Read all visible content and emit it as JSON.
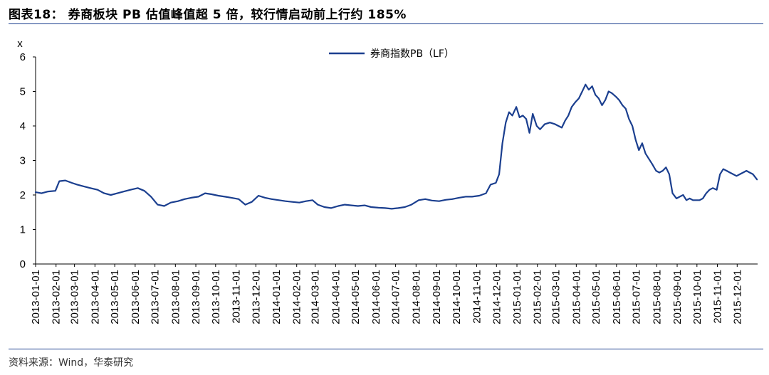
{
  "header": {
    "title": "图表18： 券商板块 PB 估值峰值超 5 倍，较行情启动前上行约 185%"
  },
  "footer": {
    "source": "资料来源：Wind，华泰研究"
  },
  "colors": {
    "series": "#1b3f8f",
    "rule": "#1b3f8f"
  },
  "chart_data": {
    "type": "line",
    "title": "",
    "ylabel": "x",
    "xlabel": "",
    "ylim": [
      0,
      6
    ],
    "yticks": [
      "0",
      "1",
      "2",
      "3",
      "4",
      "5",
      "6"
    ],
    "grid": false,
    "legend_position": "top-center",
    "xticks": [
      "2013-01-01",
      "2013-02-01",
      "2013-03-01",
      "2013-04-01",
      "2013-05-01",
      "2013-06-01",
      "2013-07-01",
      "2013-08-01",
      "2013-09-01",
      "2013-10-01",
      "2013-11-01",
      "2013-12-01",
      "2014-01-01",
      "2014-02-01",
      "2014-03-01",
      "2014-04-01",
      "2014-05-01",
      "2014-06-01",
      "2014-07-01",
      "2014-08-01",
      "2014-09-01",
      "2014-10-01",
      "2014-11-01",
      "2014-12-01",
      "2015-01-01",
      "2015-02-01",
      "2015-03-01",
      "2015-04-01",
      "2015-05-01",
      "2015-06-01",
      "2015-07-01",
      "2015-08-01",
      "2015-09-01",
      "2015-10-01",
      "2015-11-01",
      "2015-12-01"
    ],
    "series": [
      {
        "name": "券商指数PB（LF）",
        "points": [
          [
            "2013-01-01",
            2.08
          ],
          [
            "2013-01-10",
            2.05
          ],
          [
            "2013-01-20",
            2.1
          ],
          [
            "2013-01-31",
            2.12
          ],
          [
            "2013-02-06",
            2.4
          ],
          [
            "2013-02-15",
            2.42
          ],
          [
            "2013-02-25",
            2.35
          ],
          [
            "2013-03-05",
            2.3
          ],
          [
            "2013-03-15",
            2.25
          ],
          [
            "2013-03-25",
            2.2
          ],
          [
            "2013-04-05",
            2.15
          ],
          [
            "2013-04-15",
            2.05
          ],
          [
            "2013-04-25",
            2.0
          ],
          [
            "2013-05-05",
            2.05
          ],
          [
            "2013-05-15",
            2.1
          ],
          [
            "2013-05-25",
            2.15
          ],
          [
            "2013-06-05",
            2.2
          ],
          [
            "2013-06-15",
            2.12
          ],
          [
            "2013-06-25",
            1.95
          ],
          [
            "2013-07-05",
            1.72
          ],
          [
            "2013-07-15",
            1.68
          ],
          [
            "2013-07-25",
            1.78
          ],
          [
            "2013-08-05",
            1.82
          ],
          [
            "2013-08-15",
            1.88
          ],
          [
            "2013-08-25",
            1.92
          ],
          [
            "2013-09-05",
            1.95
          ],
          [
            "2013-09-15",
            2.05
          ],
          [
            "2013-09-25",
            2.02
          ],
          [
            "2013-10-05",
            1.98
          ],
          [
            "2013-10-15",
            1.95
          ],
          [
            "2013-10-25",
            1.92
          ],
          [
            "2013-11-05",
            1.88
          ],
          [
            "2013-11-15",
            1.72
          ],
          [
            "2013-11-25",
            1.8
          ],
          [
            "2013-12-05",
            1.98
          ],
          [
            "2013-12-15",
            1.92
          ],
          [
            "2013-12-25",
            1.88
          ],
          [
            "2014-01-05",
            1.85
          ],
          [
            "2014-01-15",
            1.82
          ],
          [
            "2014-01-25",
            1.8
          ],
          [
            "2014-02-05",
            1.78
          ],
          [
            "2014-02-15",
            1.82
          ],
          [
            "2014-02-25",
            1.85
          ],
          [
            "2014-03-05",
            1.72
          ],
          [
            "2014-03-15",
            1.65
          ],
          [
            "2014-03-25",
            1.62
          ],
          [
            "2014-04-05",
            1.68
          ],
          [
            "2014-04-15",
            1.72
          ],
          [
            "2014-04-25",
            1.7
          ],
          [
            "2014-05-05",
            1.68
          ],
          [
            "2014-05-15",
            1.7
          ],
          [
            "2014-05-25",
            1.65
          ],
          [
            "2014-06-05",
            1.63
          ],
          [
            "2014-06-15",
            1.62
          ],
          [
            "2014-06-25",
            1.6
          ],
          [
            "2014-07-05",
            1.62
          ],
          [
            "2014-07-15",
            1.65
          ],
          [
            "2014-07-25",
            1.72
          ],
          [
            "2014-08-05",
            1.85
          ],
          [
            "2014-08-15",
            1.88
          ],
          [
            "2014-08-25",
            1.84
          ],
          [
            "2014-09-05",
            1.82
          ],
          [
            "2014-09-15",
            1.86
          ],
          [
            "2014-09-25",
            1.88
          ],
          [
            "2014-10-05",
            1.92
          ],
          [
            "2014-10-15",
            1.95
          ],
          [
            "2014-10-25",
            1.95
          ],
          [
            "2014-11-05",
            1.98
          ],
          [
            "2014-11-15",
            2.05
          ],
          [
            "2014-11-22",
            2.3
          ],
          [
            "2014-11-30",
            2.35
          ],
          [
            "2014-12-05",
            2.6
          ],
          [
            "2014-12-10",
            3.5
          ],
          [
            "2014-12-15",
            4.1
          ],
          [
            "2014-12-20",
            4.4
          ],
          [
            "2014-12-25",
            4.3
          ],
          [
            "2014-12-31",
            4.55
          ],
          [
            "2015-01-05",
            4.25
          ],
          [
            "2015-01-10",
            4.3
          ],
          [
            "2015-01-15",
            4.2
          ],
          [
            "2015-01-20",
            3.8
          ],
          [
            "2015-01-25",
            4.35
          ],
          [
            "2015-01-31",
            4.0
          ],
          [
            "2015-02-05",
            3.9
          ],
          [
            "2015-02-12",
            4.05
          ],
          [
            "2015-02-20",
            4.1
          ],
          [
            "2015-02-28",
            4.05
          ],
          [
            "2015-03-05",
            4.0
          ],
          [
            "2015-03-10",
            3.95
          ],
          [
            "2015-03-15",
            4.15
          ],
          [
            "2015-03-20",
            4.3
          ],
          [
            "2015-03-25",
            4.55
          ],
          [
            "2015-03-31",
            4.7
          ],
          [
            "2015-04-05",
            4.8
          ],
          [
            "2015-04-10",
            5.0
          ],
          [
            "2015-04-15",
            5.2
          ],
          [
            "2015-04-20",
            5.05
          ],
          [
            "2015-04-25",
            5.15
          ],
          [
            "2015-04-30",
            4.9
          ],
          [
            "2015-05-05",
            4.8
          ],
          [
            "2015-05-10",
            4.6
          ],
          [
            "2015-05-15",
            4.75
          ],
          [
            "2015-05-20",
            5.0
          ],
          [
            "2015-05-25",
            4.95
          ],
          [
            "2015-05-31",
            4.85
          ],
          [
            "2015-06-05",
            4.75
          ],
          [
            "2015-06-10",
            4.6
          ],
          [
            "2015-06-15",
            4.5
          ],
          [
            "2015-06-20",
            4.2
          ],
          [
            "2015-06-25",
            4.0
          ],
          [
            "2015-06-30",
            3.6
          ],
          [
            "2015-07-05",
            3.3
          ],
          [
            "2015-07-10",
            3.5
          ],
          [
            "2015-07-15",
            3.2
          ],
          [
            "2015-07-20",
            3.05
          ],
          [
            "2015-07-25",
            2.9
          ],
          [
            "2015-07-31",
            2.7
          ],
          [
            "2015-08-05",
            2.65
          ],
          [
            "2015-08-10",
            2.7
          ],
          [
            "2015-08-15",
            2.8
          ],
          [
            "2015-08-20",
            2.6
          ],
          [
            "2015-08-25",
            2.05
          ],
          [
            "2015-08-31",
            1.9
          ],
          [
            "2015-09-05",
            1.95
          ],
          [
            "2015-09-10",
            2.0
          ],
          [
            "2015-09-15",
            1.85
          ],
          [
            "2015-09-20",
            1.9
          ],
          [
            "2015-09-25",
            1.85
          ],
          [
            "2015-10-05",
            1.85
          ],
          [
            "2015-10-10",
            1.9
          ],
          [
            "2015-10-15",
            2.05
          ],
          [
            "2015-10-20",
            2.15
          ],
          [
            "2015-10-25",
            2.2
          ],
          [
            "2015-10-31",
            2.15
          ],
          [
            "2015-11-05",
            2.6
          ],
          [
            "2015-11-10",
            2.75
          ],
          [
            "2015-11-15",
            2.7
          ],
          [
            "2015-11-20",
            2.65
          ],
          [
            "2015-11-25",
            2.6
          ],
          [
            "2015-11-30",
            2.55
          ],
          [
            "2015-12-05",
            2.6
          ],
          [
            "2015-12-10",
            2.65
          ],
          [
            "2015-12-15",
            2.7
          ],
          [
            "2015-12-20",
            2.65
          ],
          [
            "2015-12-25",
            2.6
          ],
          [
            "2015-12-31",
            2.45
          ]
        ]
      }
    ]
  }
}
